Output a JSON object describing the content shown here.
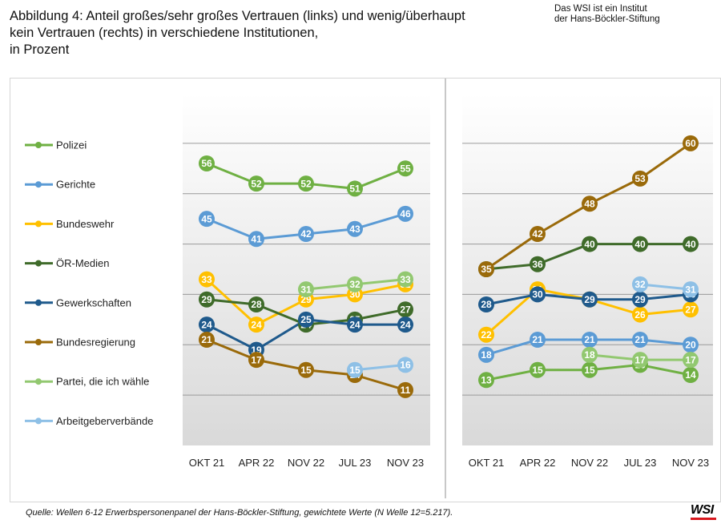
{
  "header": {
    "title_line1": "Abbildung 4: Anteil großes/sehr großes Vertrauen (links) und wenig/überhaupt",
    "title_line2": "kein Vertrauen (rechts) in verschiedene Institutionen,",
    "title_line3": "in Prozent",
    "institute_line1": "Das WSI ist ein Institut",
    "institute_line2": "der Hans-Böckler-Stiftung"
  },
  "footer": {
    "source": "Quelle: Wellen 6-12 Erwerbspersonenpanel der Hans-Böckler-Stiftung, gewichtete Werte (N Welle 12=5.217).",
    "logo_text": "WSI"
  },
  "colors": {
    "Polizei": "#6fb043",
    "Gerichte": "#5b9bd5",
    "Bundeswehr": "#ffc000",
    "ÖR-Medien": "#3f6b2a",
    "Gewerkschaften": "#1f5a8c",
    "Bundesregierung": "#9a6a0a",
    "Partei, die ich wähle": "#92c870",
    "Arbeitgeberverbände": "#8ec0e6",
    "logo_accent": "#d8171e"
  },
  "chart_data": [
    {
      "type": "line",
      "title": "großes/sehr großes Vertrauen",
      "x": [
        "OKT 21",
        "APR 22",
        "NOV 22",
        "JUL 23",
        "NOV 23"
      ],
      "ylim": [
        0,
        70
      ],
      "grid": true,
      "legend": "left",
      "series": [
        {
          "name": "Polizei",
          "values": [
            56,
            52,
            52,
            51,
            55
          ]
        },
        {
          "name": "Gerichte",
          "values": [
            45,
            41,
            42,
            43,
            46
          ]
        },
        {
          "name": "Bundeswehr",
          "values": [
            33,
            24,
            29,
            30,
            32
          ]
        },
        {
          "name": "ÖR-Medien",
          "values": [
            29,
            28,
            24,
            25,
            27
          ]
        },
        {
          "name": "Gewerkschaften",
          "values": [
            24,
            19,
            25,
            24,
            24
          ]
        },
        {
          "name": "Bundesregierung",
          "values": [
            21,
            17,
            15,
            14,
            11
          ]
        },
        {
          "name": "Partei, die ich wähle",
          "values": [
            null,
            null,
            31,
            32,
            33
          ]
        },
        {
          "name": "Arbeitgeberverbände",
          "values": [
            null,
            null,
            null,
            15,
            16
          ]
        }
      ]
    },
    {
      "type": "line",
      "title": "wenig/überhaupt kein Vertrauen",
      "x": [
        "OKT 21",
        "APR 22",
        "NOV 22",
        "JUL 23",
        "NOV 23"
      ],
      "ylim": [
        0,
        70
      ],
      "grid": true,
      "series": [
        {
          "name": "Polizei",
          "values": [
            13,
            15,
            15,
            16,
            14
          ]
        },
        {
          "name": "Gerichte",
          "values": [
            18,
            21,
            21,
            21,
            20
          ]
        },
        {
          "name": "Bundeswehr",
          "values": [
            22,
            31,
            29,
            26,
            27
          ]
        },
        {
          "name": "ÖR-Medien",
          "values": [
            35,
            36,
            40,
            40,
            40
          ]
        },
        {
          "name": "Gewerkschaften",
          "values": [
            28,
            30,
            29,
            29,
            30
          ]
        },
        {
          "name": "Bundesregierung",
          "values": [
            35,
            42,
            48,
            53,
            60
          ]
        },
        {
          "name": "Partei, die ich wähle",
          "values": [
            null,
            null,
            18,
            17,
            17
          ]
        },
        {
          "name": "Arbeitgeberverbände",
          "values": [
            null,
            null,
            null,
            32,
            31
          ]
        }
      ]
    }
  ]
}
